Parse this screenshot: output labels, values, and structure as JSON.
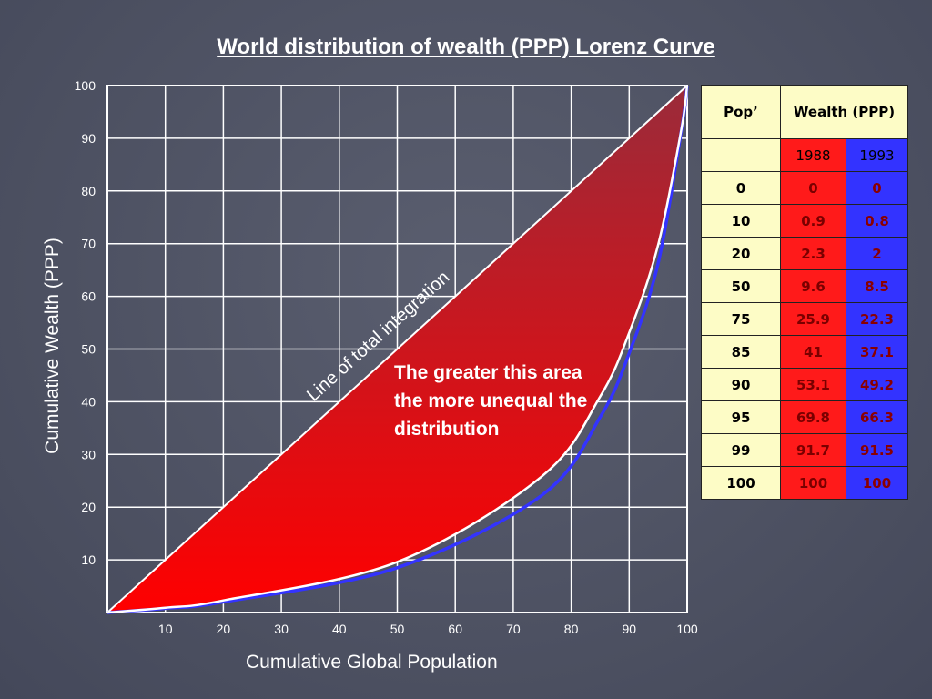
{
  "chart_data": {
    "type": "line",
    "title": "World distribution of wealth (PPP) Lorenz Curve",
    "xlabel": "Cumulative Global Population",
    "ylabel": "Cumulative Wealth (PPP)",
    "xlim": [
      0,
      100
    ],
    "ylim": [
      0,
      100
    ],
    "x_ticks": [
      10,
      20,
      30,
      40,
      50,
      60,
      70,
      80,
      90,
      100
    ],
    "y_ticks": [
      10,
      20,
      30,
      40,
      50,
      60,
      70,
      80,
      90,
      100
    ],
    "grid": true,
    "x": [
      0,
      10,
      20,
      50,
      75,
      85,
      90,
      95,
      99,
      100
    ],
    "series": [
      {
        "name": "1988",
        "values": [
          0,
          0.9,
          2.3,
          9.6,
          25.9,
          41,
          53.1,
          69.8,
          91.7,
          100
        ],
        "color": "#ffffff",
        "fill": "#ff0000"
      },
      {
        "name": "1993",
        "values": [
          0,
          0.8,
          2,
          8.5,
          22.3,
          37.1,
          49.2,
          66.3,
          91.5,
          100
        ],
        "color": "#3333ff"
      }
    ],
    "reference_line": {
      "label": "Line of total integration",
      "points": [
        [
          0,
          0
        ],
        [
          100,
          100
        ]
      ]
    },
    "annotation": "The greater this area the more unequal the distribution"
  },
  "table": {
    "header_pop": "Pop’",
    "header_wealth": "Wealth (PPP)",
    "year_1988": "1988",
    "year_1993": "1993",
    "rows": [
      {
        "pop": "0",
        "w1988": "0",
        "w1993": "0"
      },
      {
        "pop": "10",
        "w1988": "0.9",
        "w1993": "0.8"
      },
      {
        "pop": "20",
        "w1988": "2.3",
        "w1993": "2"
      },
      {
        "pop": "50",
        "w1988": "9.6",
        "w1993": "8.5"
      },
      {
        "pop": "75",
        "w1988": "25.9",
        "w1993": "22.3"
      },
      {
        "pop": "85",
        "w1988": "41",
        "w1993": "37.1"
      },
      {
        "pop": "90",
        "w1988": "53.1",
        "w1993": "49.2"
      },
      {
        "pop": "95",
        "w1988": "69.8",
        "w1993": "66.3"
      },
      {
        "pop": "99",
        "w1988": "91.7",
        "w1993": "91.5"
      },
      {
        "pop": "100",
        "w1988": "100",
        "w1993": "100"
      }
    ]
  },
  "colors": {
    "area_fill": "#ff0000",
    "series_1993": "#3333ff",
    "grid": "#ffffff"
  }
}
